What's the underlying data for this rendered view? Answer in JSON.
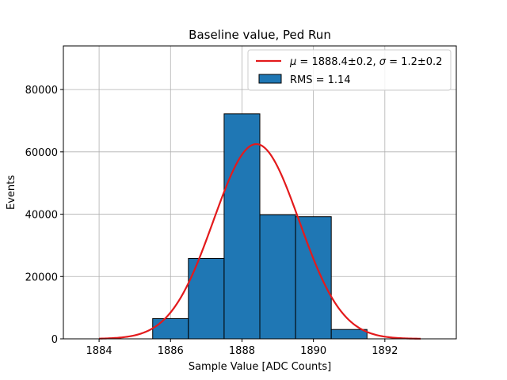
{
  "chart_data": {
    "type": "bar",
    "title": "Baseline value, Ped Run",
    "xlabel": "Sample Value [ADC Counts]",
    "ylabel": "Events",
    "xlim": [
      1883.0,
      1894.0
    ],
    "ylim": [
      0,
      94000
    ],
    "xticks": [
      1884,
      1886,
      1888,
      1890,
      1892
    ],
    "yticks": [
      0,
      20000,
      40000,
      60000,
      80000
    ],
    "grid": true,
    "legend_position": "top-right",
    "bins": [
      {
        "left": 1885.5,
        "right": 1886.5,
        "value": 6500
      },
      {
        "left": 1886.5,
        "right": 1887.5,
        "value": 25800
      },
      {
        "left": 1887.5,
        "right": 1888.5,
        "value": 72200
      },
      {
        "left": 1888.5,
        "right": 1889.5,
        "value": 39800
      },
      {
        "left": 1889.5,
        "right": 1890.5,
        "value": 39200
      },
      {
        "left": 1890.5,
        "right": 1891.5,
        "value": 3000
      }
    ],
    "fit": {
      "type": "gaussian",
      "mu": 1888.4,
      "sigma": 1.2,
      "amplitude": 62500,
      "x_range": [
        1884.0,
        1893.0
      ]
    },
    "legend": {
      "fit_label_parts": [
        {
          "text": "μ",
          "italic": true
        },
        {
          "text": " = 1888.4±0.2, ",
          "italic": false
        },
        {
          "text": "σ",
          "italic": true
        },
        {
          "text": " = 1.2±0.2",
          "italic": false
        }
      ],
      "hist_label": "RMS = 1.14"
    },
    "colors": {
      "bars": "#1f77b4",
      "fit": "#e31a1c"
    }
  }
}
